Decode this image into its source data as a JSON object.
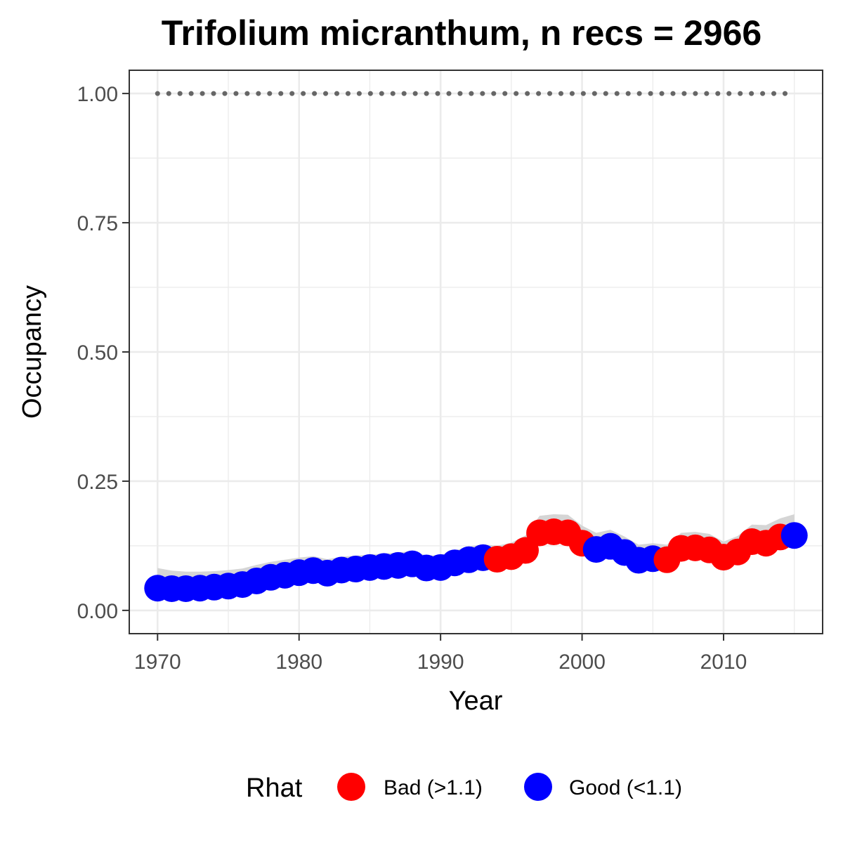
{
  "chart_data": {
    "type": "line",
    "title": "Trifolium micranthum, n recs = 2966",
    "xlabel": "Year",
    "ylabel": "Occupancy",
    "xlim": [
      1968,
      2017
    ],
    "ylim": [
      -0.045,
      1.045
    ],
    "x_ticks": [
      1970,
      1980,
      1990,
      2000,
      2010
    ],
    "x_tick_labels": [
      "1970",
      "1980",
      "1990",
      "2000",
      "2010"
    ],
    "y_ticks": [
      0,
      0.25,
      0.5,
      0.75,
      1.0
    ],
    "y_tick_labels": [
      "0.00",
      "0.25",
      "0.50",
      "0.75",
      "1.00"
    ],
    "grid": true,
    "legend": {
      "title": "Rhat",
      "position": "bottom",
      "entries": [
        {
          "key": "bad",
          "label": "Bad (>1.1)",
          "color": "#ff0000"
        },
        {
          "key": "good",
          "label": "Good (<1.1)",
          "color": "#0000ff"
        }
      ]
    },
    "reference_line": {
      "y": 1.0,
      "style": "dotted",
      "color": "#666666",
      "x_range": [
        1970,
        2015
      ]
    },
    "series": [
      {
        "name": "Occupancy",
        "x": [
          1970,
          1971,
          1972,
          1973,
          1974,
          1975,
          1976,
          1977,
          1978,
          1979,
          1980,
          1981,
          1982,
          1983,
          1984,
          1985,
          1986,
          1987,
          1988,
          1989,
          1990,
          1991,
          1992,
          1993,
          1994,
          1995,
          1996,
          1997,
          1998,
          1999,
          2000,
          2001,
          2002,
          2003,
          2004,
          2005,
          2006,
          2007,
          2008,
          2009,
          2010,
          2011,
          2012,
          2013,
          2014,
          2015
        ],
        "y": [
          0.043,
          0.042,
          0.042,
          0.043,
          0.045,
          0.047,
          0.05,
          0.057,
          0.064,
          0.068,
          0.073,
          0.077,
          0.072,
          0.078,
          0.08,
          0.083,
          0.085,
          0.087,
          0.09,
          0.082,
          0.083,
          0.092,
          0.098,
          0.102,
          0.099,
          0.104,
          0.116,
          0.15,
          0.152,
          0.15,
          0.13,
          0.118,
          0.124,
          0.112,
          0.097,
          0.1,
          0.098,
          0.12,
          0.121,
          0.117,
          0.103,
          0.113,
          0.133,
          0.13,
          0.142,
          0.145
        ],
        "lower": [
          0.03,
          0.029,
          0.029,
          0.03,
          0.032,
          0.034,
          0.037,
          0.043,
          0.05,
          0.054,
          0.059,
          0.062,
          0.058,
          0.063,
          0.065,
          0.068,
          0.07,
          0.072,
          0.074,
          0.067,
          0.068,
          0.076,
          0.082,
          0.085,
          0.082,
          0.087,
          0.098,
          0.13,
          0.133,
          0.131,
          0.113,
          0.102,
          0.106,
          0.095,
          0.082,
          0.084,
          0.082,
          0.102,
          0.103,
          0.099,
          0.087,
          0.096,
          0.114,
          0.111,
          0.122,
          0.124
        ],
        "upper": [
          0.082,
          0.077,
          0.075,
          0.075,
          0.076,
          0.078,
          0.081,
          0.088,
          0.094,
          0.098,
          0.102,
          0.105,
          0.099,
          0.104,
          0.106,
          0.108,
          0.11,
          0.112,
          0.115,
          0.106,
          0.107,
          0.116,
          0.123,
          0.128,
          0.125,
          0.131,
          0.145,
          0.183,
          0.186,
          0.185,
          0.164,
          0.15,
          0.156,
          0.143,
          0.127,
          0.13,
          0.127,
          0.15,
          0.152,
          0.148,
          0.133,
          0.144,
          0.166,
          0.165,
          0.178,
          0.186
        ],
        "rhat": [
          "good",
          "good",
          "good",
          "good",
          "good",
          "good",
          "good",
          "good",
          "good",
          "good",
          "good",
          "good",
          "good",
          "good",
          "good",
          "good",
          "good",
          "good",
          "good",
          "good",
          "good",
          "good",
          "good",
          "good",
          "bad",
          "bad",
          "bad",
          "bad",
          "bad",
          "bad",
          "bad",
          "good",
          "good",
          "good",
          "good",
          "good",
          "bad",
          "bad",
          "bad",
          "bad",
          "bad",
          "bad",
          "bad",
          "bad",
          "bad",
          "good"
        ]
      }
    ]
  }
}
